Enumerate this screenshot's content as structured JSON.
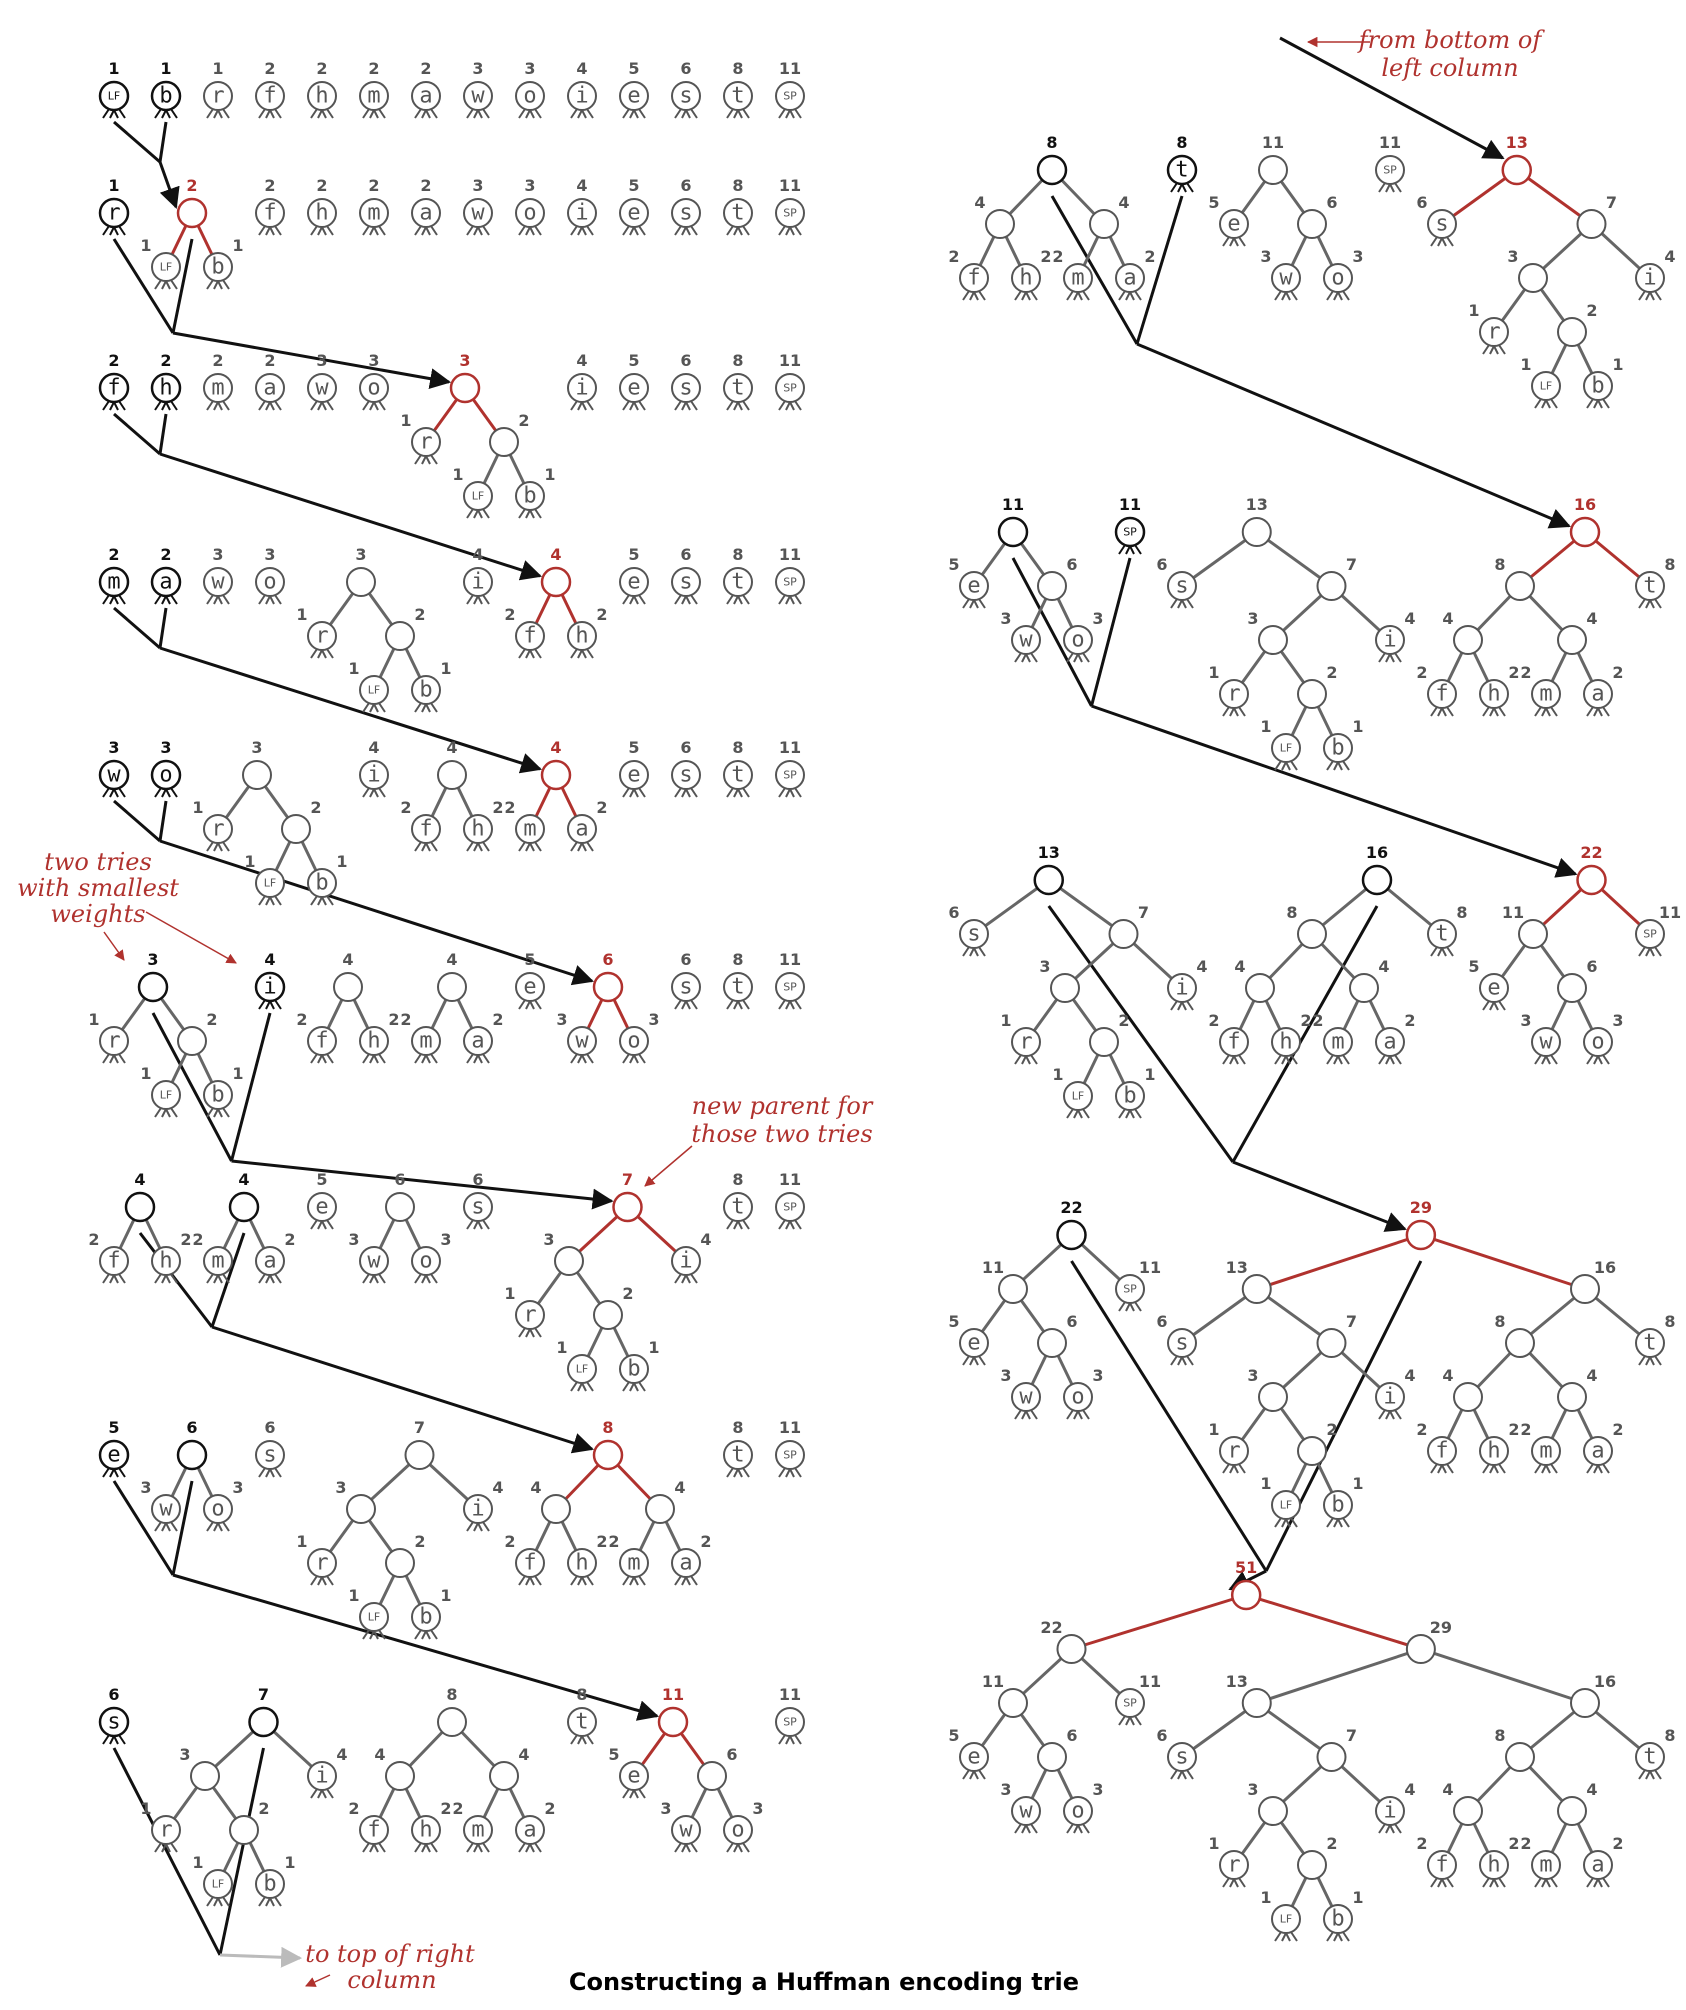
{
  "caption": "Constructing a Huffman encoding trie",
  "annotations": {
    "from_bottom_line1": "from bottom of",
    "from_bottom_line2": "left column",
    "two_tries_line1": "two tries",
    "two_tries_line2": "with smallest",
    "two_tries_line3": "weights",
    "new_parent_line1": "new parent for",
    "new_parent_line2": "those two tries",
    "to_top_line1": "to top of  right",
    "to_top_line2": "column"
  },
  "colors": {
    "highlight": "#b0322e",
    "merge": "#111111",
    "node": "#555555",
    "return_arrow": "#bbbbbb"
  },
  "trees": {
    "t1": {
      "w": 1,
      "s": "LF"
    },
    "t2": {
      "w": 1,
      "s": "b"
    },
    "t3": {
      "w": 1,
      "s": "r"
    },
    "t4": {
      "w": 2,
      "s": "f"
    },
    "t5": {
      "w": 2,
      "s": "h"
    },
    "t6": {
      "w": 2,
      "s": "m"
    },
    "t7": {
      "w": 2,
      "s": "a"
    },
    "t8": {
      "w": 3,
      "s": "w"
    },
    "t9": {
      "w": 3,
      "s": "o"
    },
    "t10": {
      "w": 4,
      "s": "i"
    },
    "t11": {
      "w": 5,
      "s": "e"
    },
    "t12": {
      "w": 6,
      "s": "s"
    },
    "t13": {
      "w": 8,
      "s": "t"
    },
    "t14": {
      "w": 11,
      "s": "SP"
    },
    "lfb": {
      "w": 2,
      "c": [
        "t1",
        "t2"
      ]
    },
    "rlfb": {
      "w": 3,
      "c": [
        "t3",
        "lfb"
      ]
    },
    "fh": {
      "w": 4,
      "c": [
        "t4",
        "t5"
      ]
    },
    "ma": {
      "w": 4,
      "c": [
        "t6",
        "t7"
      ]
    },
    "wo": {
      "w": 6,
      "c": [
        "t8",
        "t9"
      ]
    },
    "seven": {
      "w": 7,
      "c": [
        "rlfb",
        "t10"
      ]
    },
    "eight": {
      "w": 8,
      "c": [
        "fh",
        "ma"
      ]
    },
    "eleven": {
      "w": 11,
      "c": [
        "t11",
        "wo"
      ]
    },
    "thirteen": {
      "w": 13,
      "c": [
        "t12",
        "seven"
      ]
    },
    "sixteen": {
      "w": 16,
      "c": [
        "eight",
        "t13"
      ]
    },
    "twentytwo": {
      "w": 22,
      "c": [
        "eleven",
        "t14"
      ]
    },
    "twentynine": {
      "w": 29,
      "c": [
        "thirteen",
        "sixteen"
      ]
    },
    "fiftyone": {
      "w": 51,
      "c": [
        "twentytwo",
        "twentynine"
      ]
    }
  },
  "steps": [
    {
      "row": [
        "t1",
        "t2",
        "t3",
        "t4",
        "t5",
        "t6",
        "t7",
        "t8",
        "t9",
        "t10",
        "t11",
        "t12",
        "t13",
        "t14"
      ],
      "merged": [
        "t1",
        "t2"
      ],
      "result": "lfb"
    },
    {
      "row": [
        "t3",
        "lfb",
        "t4",
        "t5",
        "t6",
        "t7",
        "t8",
        "t9",
        "t10",
        "t11",
        "t12",
        "t13",
        "t14"
      ],
      "merged": [
        "t3",
        "lfb"
      ],
      "result": "rlfb"
    },
    {
      "row": [
        "t4",
        "t5",
        "t6",
        "t7",
        "t8",
        "t9",
        "rlfb",
        "t10",
        "t11",
        "t12",
        "t13",
        "t14"
      ],
      "merged": [
        "t4",
        "t5"
      ],
      "result": "fh"
    },
    {
      "row": [
        "t6",
        "t7",
        "t8",
        "t9",
        "rlfb",
        "t10",
        "fh",
        "t11",
        "t12",
        "t13",
        "t14"
      ],
      "merged": [
        "t6",
        "t7"
      ],
      "result": "ma"
    },
    {
      "row": [
        "t8",
        "t9",
        "rlfb",
        "t10",
        "fh",
        "ma",
        "t11",
        "t12",
        "t13",
        "t14"
      ],
      "merged": [
        "t8",
        "t9"
      ],
      "result": "wo"
    },
    {
      "row": [
        "rlfb",
        "t10",
        "fh",
        "ma",
        "t11",
        "wo",
        "t12",
        "t13",
        "t14"
      ],
      "merged": [
        "rlfb",
        "t10"
      ],
      "result": "seven"
    },
    {
      "row": [
        "fh",
        "ma",
        "t11",
        "wo",
        "t12",
        "seven",
        "t13",
        "t14"
      ],
      "merged": [
        "fh",
        "ma"
      ],
      "result": "eight"
    },
    {
      "row": [
        "t11",
        "wo",
        "t12",
        "seven",
        "eight",
        "t13",
        "t14"
      ],
      "merged": [
        "t11",
        "wo"
      ],
      "result": "eleven"
    },
    {
      "row": [
        "t12",
        "seven",
        "eight",
        "t13",
        "eleven",
        "t14"
      ],
      "merged": [
        "t12",
        "seven"
      ],
      "result": "thirteen"
    },
    {
      "row": [
        "eight",
        "t13",
        "eleven",
        "t14",
        "thirteen"
      ],
      "merged": [
        "eight",
        "t13"
      ],
      "result": "sixteen"
    },
    {
      "row": [
        "eleven",
        "t14",
        "thirteen",
        "sixteen"
      ],
      "merged": [
        "eleven",
        "t14"
      ],
      "result": "twentytwo"
    },
    {
      "row": [
        "thirteen",
        "sixteen",
        "twentytwo"
      ],
      "merged": [
        "thirteen",
        "sixteen"
      ],
      "result": "twentynine"
    },
    {
      "row": [
        "twentytwo",
        "twentynine"
      ],
      "merged": [
        "twentytwo",
        "twentynine"
      ],
      "result": "fiftyone"
    },
    {
      "row": [
        "fiftyone"
      ],
      "merged": [],
      "result": null
    }
  ]
}
